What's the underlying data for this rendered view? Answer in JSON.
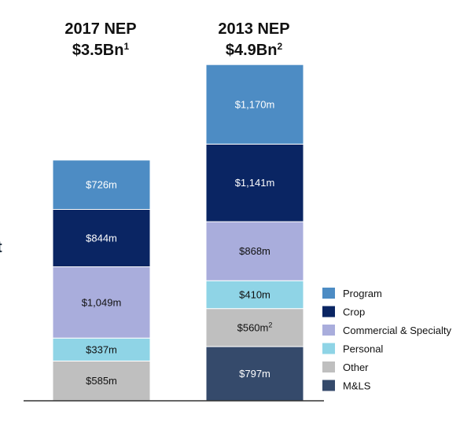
{
  "edge_glyph": "t",
  "chart_data": {
    "type": "bar",
    "stacked": true,
    "y_unit": "$m",
    "grid": false,
    "legend_position": "right",
    "categories": [
      {
        "title_line1": "2017 NEP",
        "title_line2": "$3.5Bn",
        "title_sup": "1"
      },
      {
        "title_line1": "2013 NEP",
        "title_line2": "$4.9Bn",
        "title_sup": "2"
      }
    ],
    "series": [
      {
        "name": "M&LS",
        "color": "#354a6b",
        "label_color": "#ffffff",
        "values": [
          null,
          797
        ],
        "labels": [
          "",
          "$797m"
        ],
        "sups": [
          "",
          ""
        ]
      },
      {
        "name": "Other",
        "color": "#bfbfbf",
        "label_color": "#111111",
        "values": [
          585,
          560
        ],
        "labels": [
          "$585m",
          "$560m"
        ],
        "sups": [
          "",
          "2"
        ]
      },
      {
        "name": "Personal",
        "color": "#8fd4e6",
        "label_color": "#111111",
        "values": [
          337,
          410
        ],
        "labels": [
          "$337m",
          "$410m"
        ],
        "sups": [
          "",
          ""
        ]
      },
      {
        "name": "Commercial & Specialty",
        "color": "#a9addc",
        "label_color": "#111111",
        "values": [
          1049,
          868
        ],
        "labels": [
          "$1,049m",
          "$868m"
        ],
        "sups": [
          "",
          ""
        ]
      },
      {
        "name": "Crop",
        "color": "#0a2563",
        "label_color": "#ffffff",
        "values": [
          844,
          1141
        ],
        "labels": [
          "$844m",
          "$1,141m"
        ],
        "sups": [
          "",
          ""
        ]
      },
      {
        "name": "Program",
        "color": "#4d8cc4",
        "label_color": "#ffffff",
        "values": [
          726,
          1170
        ],
        "labels": [
          "$726m",
          "$1,170m"
        ],
        "sups": [
          "",
          ""
        ]
      }
    ],
    "legend_order": [
      "Program",
      "Crop",
      "Commercial & Specialty",
      "Personal",
      "Other",
      "M&LS"
    ]
  }
}
